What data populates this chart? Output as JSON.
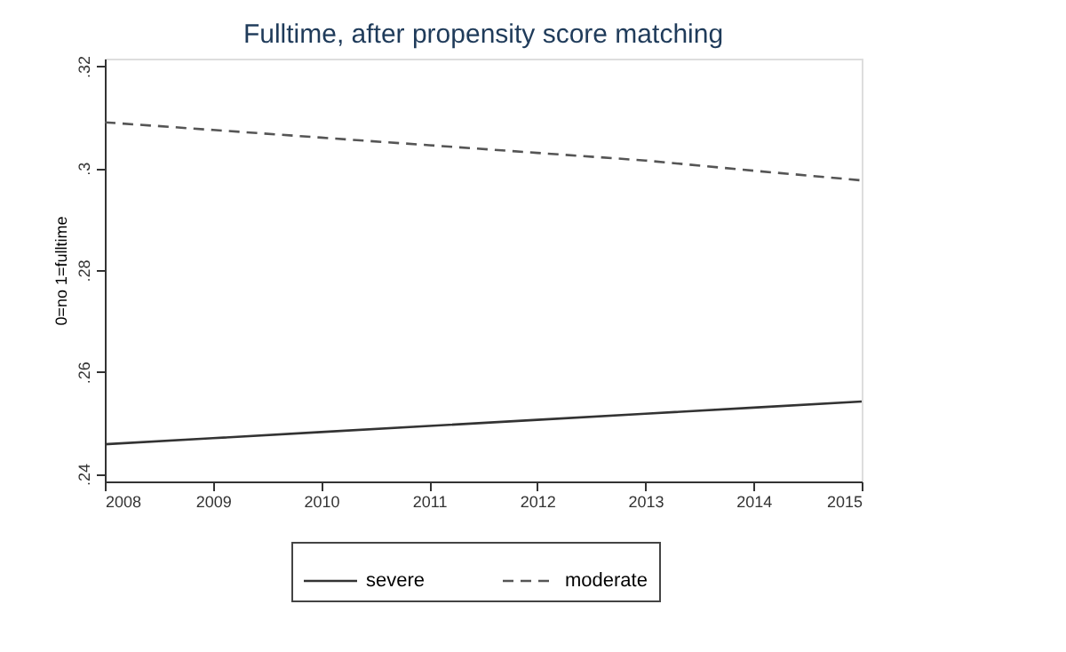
{
  "chart_data": {
    "type": "line",
    "title": "Fulltime, after propensity score matching",
    "ylabel": "0=no                                                   1=fulltime",
    "x": [
      2008,
      2009,
      2010,
      2011,
      2012,
      2013,
      2014,
      2015
    ],
    "series": [
      {
        "name": "severe",
        "color": "#333333",
        "line_style": "solid",
        "values": [
          0.2458,
          0.247,
          0.2482,
          0.2494,
          0.2506,
          0.2518,
          0.253,
          0.2542
        ]
      },
      {
        "name": "moderate",
        "color": "#555555",
        "line_style": "dashed",
        "values": [
          0.309,
          0.3075,
          0.306,
          0.3045,
          0.303,
          0.3015,
          0.2995,
          0.2976
        ]
      }
    ],
    "xlim": [
      2008,
      2015
    ],
    "xticks": [
      2008,
      2009,
      2010,
      2011,
      2012,
      2013,
      2014,
      2015
    ],
    "ylim": [
      0.2385,
      0.3215
    ],
    "yticks": [
      {
        "value": 0.24,
        "label": ".24"
      },
      {
        "value": 0.26,
        "label": ".26"
      },
      {
        "value": 0.28,
        "label": ".28"
      },
      {
        "value": 0.3,
        "label": ".3"
      },
      {
        "value": 0.32,
        "label": ".32"
      }
    ],
    "grid": false,
    "legend": "bottom",
    "marker": "none"
  }
}
